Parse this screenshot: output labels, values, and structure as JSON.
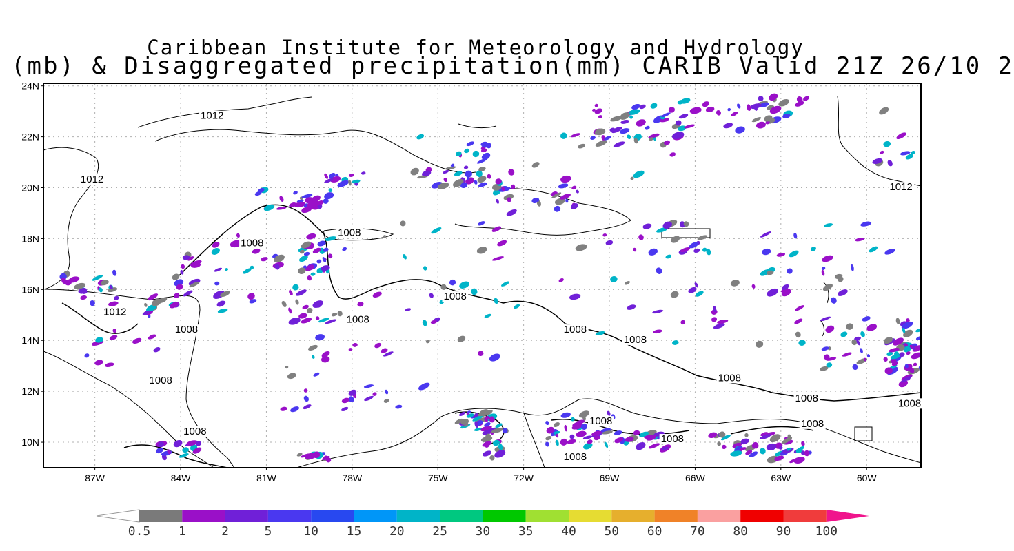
{
  "title": {
    "line1": "Caribbean Institute for Meteorology and Hydrology",
    "line2": "(mb) & Disaggregated precipitation(mm) CARIB Valid 21Z 26/10 2"
  },
  "map": {
    "lon_range": [
      -88.8,
      -58.1
    ],
    "lat_range": [
      9,
      24.1
    ],
    "lat_ticks": [
      {
        "value": 24,
        "label": "24N"
      },
      {
        "value": 22,
        "label": "22N"
      },
      {
        "value": 20,
        "label": "20N"
      },
      {
        "value": 18,
        "label": "18N"
      },
      {
        "value": 16,
        "label": "16N"
      },
      {
        "value": 14,
        "label": "14N"
      },
      {
        "value": 12,
        "label": "12N"
      },
      {
        "value": 10,
        "label": "10N"
      }
    ],
    "lon_ticks": [
      {
        "value": -87,
        "label": "87W"
      },
      {
        "value": -84,
        "label": "84W"
      },
      {
        "value": -81,
        "label": "81W"
      },
      {
        "value": -78,
        "label": "78W"
      },
      {
        "value": -75,
        "label": "75W"
      },
      {
        "value": -72,
        "label": "72W"
      },
      {
        "value": -69,
        "label": "69W"
      },
      {
        "value": -66,
        "label": "66W"
      },
      {
        "value": -63,
        "label": "63W"
      },
      {
        "value": -60,
        "label": "60W"
      }
    ],
    "isobar_labels": [
      {
        "text": "1012",
        "lon": -83.3,
        "lat": 22.7
      },
      {
        "text": "1012",
        "lon": -87.5,
        "lat": 20.2
      },
      {
        "text": "1012",
        "lon": -59.2,
        "lat": 19.9
      },
      {
        "text": "1008",
        "lon": -81.9,
        "lat": 17.7
      },
      {
        "text": "1008",
        "lon": -78.5,
        "lat": 18.1
      },
      {
        "text": "1012",
        "lon": -86.7,
        "lat": 15.0
      },
      {
        "text": "1008",
        "lon": -84.2,
        "lat": 14.3
      },
      {
        "text": "1008",
        "lon": -78.2,
        "lat": 14.7
      },
      {
        "text": "1008",
        "lon": -74.8,
        "lat": 15.6
      },
      {
        "text": "1008",
        "lon": -70.6,
        "lat": 14.3
      },
      {
        "text": "1008",
        "lon": -68.5,
        "lat": 13.9
      },
      {
        "text": "1008",
        "lon": -65.2,
        "lat": 12.4
      },
      {
        "text": "1008",
        "lon": -85.1,
        "lat": 12.3
      },
      {
        "text": "1008",
        "lon": -83.9,
        "lat": 10.3
      },
      {
        "text": "1008",
        "lon": -69.7,
        "lat": 10.7
      },
      {
        "text": "1008",
        "lon": -67.2,
        "lat": 10.0
      },
      {
        "text": "1008",
        "lon": -70.6,
        "lat": 9.3
      },
      {
        "text": "1008",
        "lon": -62.5,
        "lat": 11.6
      },
      {
        "text": "1008",
        "lon": -62.3,
        "lat": 10.6
      },
      {
        "text": "1008",
        "lon": -58.9,
        "lat": 11.4
      }
    ]
  },
  "colorbar": {
    "under_color": "#ffffff",
    "levels": [
      "0.5",
      "1",
      "2",
      "5",
      "10",
      "15",
      "20",
      "25",
      "30",
      "35",
      "40",
      "50",
      "60",
      "70",
      "80",
      "90",
      "100"
    ],
    "colors": [
      "#7a7a7a",
      "#9a10c8",
      "#7020d8",
      "#4a38f0",
      "#2848f0",
      "#0096f8",
      "#00b4c8",
      "#00c880",
      "#00c800",
      "#a0e032",
      "#e6dc32",
      "#e6af2d",
      "#f08228",
      "#faa0a0",
      "#f00000",
      "#f03c3c"
    ],
    "over_color": "#f0148c"
  },
  "precip_colors": {
    "gray": "#808080",
    "purple": "#9a10c8",
    "violet": "#7020d8",
    "blue": "#4a38f0",
    "cyan": "#00b4c8"
  }
}
